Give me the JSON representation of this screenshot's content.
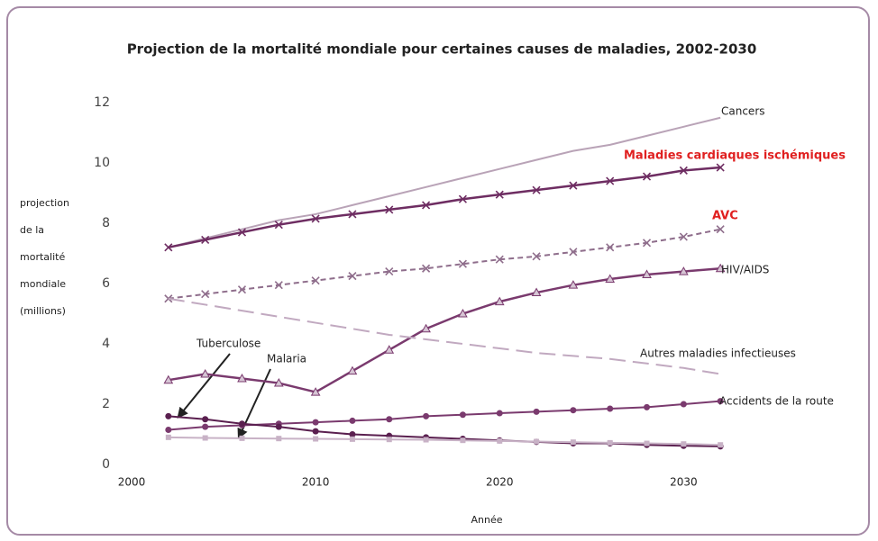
{
  "chart_data": {
    "type": "line",
    "title": "Projection de la mortalité mondiale pour certaines causes de maladies, 2002-2030",
    "xlabel": "Année",
    "ylabel_lines": [
      "projection",
      "de la",
      "mortalité",
      "mondiale",
      "(millions)"
    ],
    "x": [
      2002,
      2004,
      2006,
      2008,
      2010,
      2012,
      2014,
      2016,
      2018,
      2020,
      2022,
      2024,
      2026,
      2028,
      2030,
      2032
    ],
    "xlim": [
      2000,
      2034
    ],
    "xticks": [
      2000,
      2010,
      2020,
      2030
    ],
    "ylim": [
      0,
      12
    ],
    "yticks": [
      0,
      2,
      4,
      6,
      8,
      10,
      12
    ],
    "grid": false,
    "series": [
      {
        "name": "Cancers",
        "color": "#b9a3b7",
        "marker": "none",
        "dash": "solid",
        "values": [
          7.2,
          7.5,
          7.8,
          8.1,
          8.3,
          8.6,
          8.9,
          9.2,
          9.5,
          9.8,
          10.1,
          10.4,
          10.6,
          10.9,
          11.2,
          11.5
        ]
      },
      {
        "name": "Maladies cardiaques ischémiques",
        "color": "#6e2d62",
        "marker": "x",
        "dash": "solid",
        "label_color": "#e02020",
        "values": [
          7.2,
          7.45,
          7.7,
          7.95,
          8.15,
          8.3,
          8.45,
          8.6,
          8.8,
          8.95,
          9.1,
          9.25,
          9.4,
          9.55,
          9.75,
          9.85
        ]
      },
      {
        "name": "AVC",
        "color": "#8f6e8c",
        "marker": "x",
        "dash": "dashed",
        "label_color": "#e02020",
        "values": [
          5.5,
          5.65,
          5.8,
          5.95,
          6.1,
          6.25,
          6.4,
          6.5,
          6.65,
          6.8,
          6.9,
          7.05,
          7.2,
          7.35,
          7.55,
          7.8
        ]
      },
      {
        "name": "HIV/AIDS",
        "color": "#7a3a6e",
        "marker": "triangle",
        "dash": "solid",
        "values": [
          2.8,
          3.0,
          2.85,
          2.7,
          2.4,
          3.1,
          3.8,
          4.5,
          5.0,
          5.4,
          5.7,
          5.95,
          6.15,
          6.3,
          6.4,
          6.5
        ]
      },
      {
        "name": "Autres maladies infectieuses",
        "color": "#c1a9c0",
        "marker": "none",
        "dash": "longdash",
        "values": [
          5.5,
          5.3,
          5.1,
          4.9,
          4.7,
          4.5,
          4.3,
          4.15,
          4.0,
          3.85,
          3.7,
          3.6,
          3.5,
          3.35,
          3.2,
          3.0
        ]
      },
      {
        "name": "Accidents de la route",
        "color": "#7a3a6e",
        "marker": "circle",
        "dash": "solid",
        "values": [
          1.15,
          1.25,
          1.3,
          1.35,
          1.4,
          1.45,
          1.5,
          1.6,
          1.65,
          1.7,
          1.75,
          1.8,
          1.85,
          1.9,
          2.0,
          2.1
        ]
      },
      {
        "name": "Tuberculose",
        "color": "#5a1f4f",
        "marker": "circle",
        "dash": "solid",
        "values": [
          1.6,
          1.5,
          1.35,
          1.25,
          1.1,
          1.0,
          0.95,
          0.9,
          0.85,
          0.8,
          0.75,
          0.7,
          0.7,
          0.65,
          0.62,
          0.6
        ]
      },
      {
        "name": "Malaria",
        "color": "#c8b2c6",
        "marker": "square",
        "dash": "solid",
        "values": [
          0.9,
          0.88,
          0.87,
          0.86,
          0.85,
          0.84,
          0.83,
          0.82,
          0.8,
          0.78,
          0.76,
          0.74,
          0.72,
          0.7,
          0.68,
          0.65
        ]
      }
    ]
  }
}
